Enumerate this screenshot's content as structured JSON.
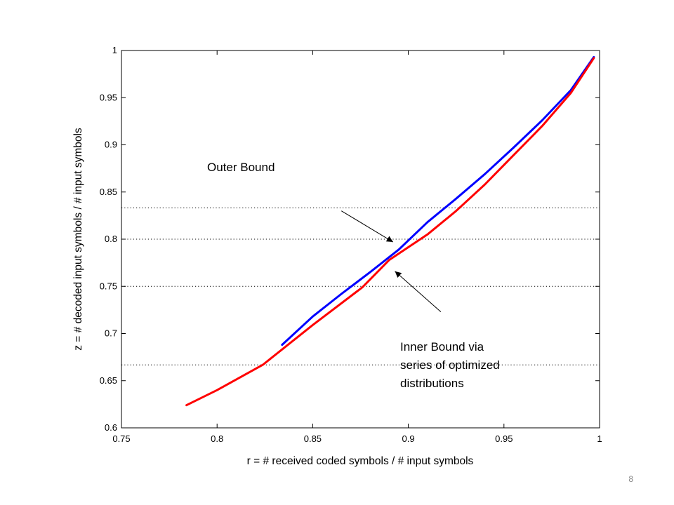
{
  "chart_data": {
    "type": "line",
    "xlabel": "r = # received coded symbols / # input symbols",
    "ylabel": "z = # decoded input symbols / # input symbols",
    "xlim": [
      0.75,
      1.0
    ],
    "ylim": [
      0.6,
      1.0
    ],
    "xticks": [
      0.75,
      0.8,
      0.85,
      0.9,
      0.95,
      1.0
    ],
    "xtick_labels": [
      "0.75",
      "0.8",
      "0.85",
      "0.9",
      "0.95",
      "1"
    ],
    "yticks": [
      0.6,
      0.65,
      0.7,
      0.75,
      0.8,
      0.85,
      0.9,
      0.95,
      1.0
    ],
    "ytick_labels": [
      "0.6",
      "0.65",
      "0.7",
      "0.75",
      "0.8",
      "0.85",
      "0.9",
      "0.95",
      "1"
    ],
    "grid": false,
    "hlines": [
      {
        "y": 0.6667,
        "style": "dotted"
      },
      {
        "y": 0.75,
        "style": "dotted"
      },
      {
        "y": 0.8,
        "style": "dotted"
      },
      {
        "y": 0.8333,
        "style": "dotted"
      }
    ],
    "series": [
      {
        "color": "#0000ff",
        "x": [
          0.834,
          0.85,
          0.865,
          0.88,
          0.895,
          0.91,
          0.925,
          0.94,
          0.955,
          0.97,
          0.985,
          0.997
        ],
        "y": [
          0.688,
          0.718,
          0.742,
          0.765,
          0.789,
          0.818,
          0.843,
          0.869,
          0.897,
          0.926,
          0.958,
          0.993
        ]
      },
      {
        "color": "#ff0000",
        "x": [
          0.784,
          0.8,
          0.824,
          0.85,
          0.876,
          0.89,
          0.91,
          0.925,
          0.94,
          0.955,
          0.97,
          0.985,
          0.997
        ],
        "y": [
          0.624,
          0.64,
          0.667,
          0.709,
          0.749,
          0.778,
          0.805,
          0.83,
          0.858,
          0.889,
          0.92,
          0.955,
          0.992
        ]
      }
    ],
    "annotations": [
      {
        "text_lines": [
          "Outer Bound"
        ],
        "arrow_from": [
          0.865,
          0.83
        ],
        "arrow_to": [
          0.892,
          0.797
        ]
      },
      {
        "text_lines": [
          "Inner Bound via",
          "series of optimized",
          "distributions"
        ],
        "arrow_from": [
          0.917,
          0.723
        ],
        "arrow_to": [
          0.893,
          0.766
        ]
      }
    ]
  },
  "slide": {
    "page_number": "8"
  }
}
